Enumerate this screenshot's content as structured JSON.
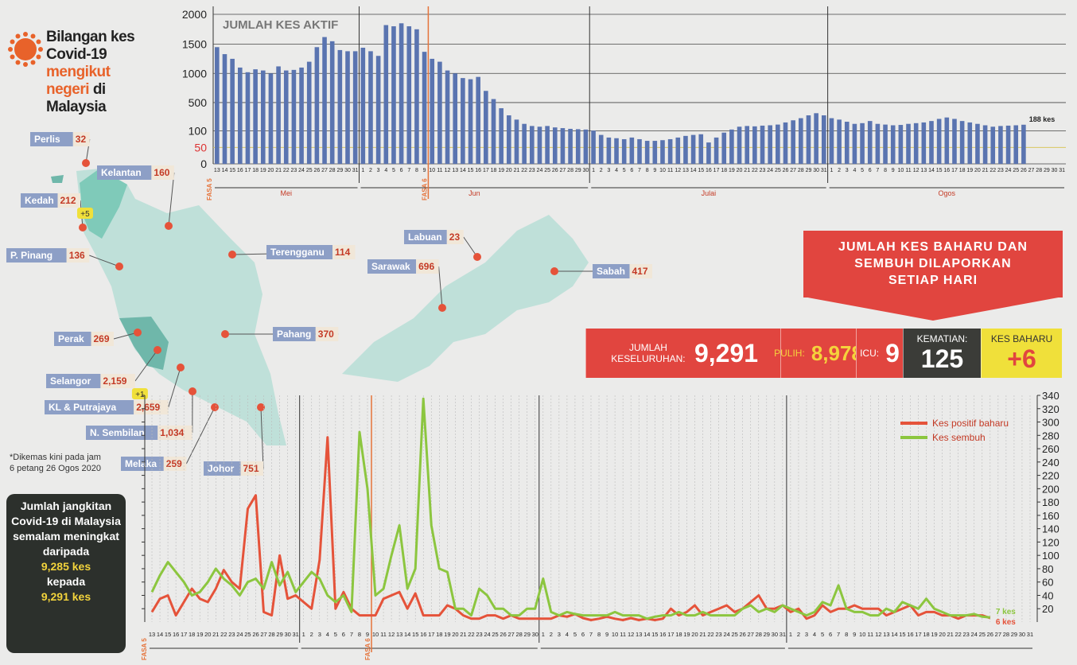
{
  "title": [
    "Bilangan kes Covid-19",
    "mengikut negeri",
    "di Malaysia"
  ],
  "note": "*Dikemas kini pada jam 6 petang 26 Ogos 2020",
  "summary_box": {
    "text": "Jumlah jangkitan Covid-19 di Malaysia semalam meningkat daripada",
    "from": "9,285 kes",
    "joiner": "kepada",
    "to": "9,291 kes"
  },
  "banner": "JUMLAH KES BAHARU DAN SEMBUH DILAPORKAN SETIAP HARI",
  "totals": {
    "total": {
      "label": "JUMLAH KESELURUHAN:",
      "value": "9,291"
    },
    "recovered": {
      "label": "PULIH:",
      "value": "8,978"
    },
    "icu": {
      "label": "ICU:",
      "value": "9"
    },
    "deaths": {
      "label": "KEMATIAN:",
      "value": "125"
    },
    "new": {
      "label": "KES BAHARU",
      "value": "+6"
    }
  },
  "map": {
    "states": [
      {
        "name": "Perlis",
        "count": "32"
      },
      {
        "name": "Kelantan",
        "count": "160"
      },
      {
        "name": "Kedah",
        "count": "212",
        "increase": "+5"
      },
      {
        "name": "P. Pinang",
        "count": "136"
      },
      {
        "name": "Terengganu",
        "count": "114"
      },
      {
        "name": "Perak",
        "count": "269"
      },
      {
        "name": "Pahang",
        "count": "370"
      },
      {
        "name": "Selangor",
        "count": "2,159",
        "increase": "+1"
      },
      {
        "name": "KL & Putrajaya",
        "count": "2,659"
      },
      {
        "name": "N. Sembilan",
        "count": "1,034"
      },
      {
        "name": "Melaka",
        "count": "259"
      },
      {
        "name": "Johor",
        "count": "751"
      },
      {
        "name": "Labuan",
        "count": "23"
      },
      {
        "name": "Sarawak",
        "count": "696"
      },
      {
        "name": "Sabah",
        "count": "417"
      }
    ]
  },
  "chart_data": [
    {
      "type": "bar",
      "title": "JUMLAH KES AKTIF",
      "categories": [
        "13",
        "14",
        "15",
        "16",
        "17",
        "18",
        "19",
        "20",
        "21",
        "22",
        "23",
        "24",
        "25",
        "26",
        "27",
        "28",
        "29",
        "30",
        "31",
        "1",
        "2",
        "3",
        "4",
        "5",
        "6",
        "7",
        "8",
        "9",
        "10",
        "11",
        "12",
        "13",
        "14",
        "15",
        "16",
        "17",
        "18",
        "19",
        "20",
        "21",
        "22",
        "23",
        "24",
        "25",
        "26",
        "27",
        "28",
        "29",
        "30",
        "1",
        "2",
        "3",
        "4",
        "5",
        "6",
        "7",
        "8",
        "9",
        "10",
        "11",
        "12",
        "13",
        "14",
        "15",
        "16",
        "17",
        "18",
        "19",
        "20",
        "21",
        "22",
        "23",
        "24",
        "25",
        "26",
        "27",
        "28",
        "29",
        "30",
        "31",
        "1",
        "2",
        "3",
        "4",
        "5",
        "6",
        "7",
        "8",
        "9",
        "10",
        "11",
        "12",
        "13",
        "14",
        "15",
        "16",
        "17",
        "18",
        "19",
        "20",
        "21",
        "22",
        "23",
        "24",
        "25",
        "26",
        "27",
        "28",
        "29",
        "30",
        "31"
      ],
      "months": [
        "Mei",
        "Jun",
        "Julai",
        "Ogos"
      ],
      "phases": [
        {
          "label": "FASA 5",
          "start": 0
        },
        {
          "label": "FASA 6",
          "start": 28
        }
      ],
      "values": [
        1450,
        1330,
        1250,
        1100,
        1020,
        1070,
        1050,
        1000,
        1120,
        1050,
        1060,
        1100,
        1200,
        1450,
        1620,
        1550,
        1400,
        1380,
        1380,
        1440,
        1380,
        1300,
        1820,
        1800,
        1850,
        1800,
        1750,
        1370,
        1250,
        1200,
        1050,
        1000,
        920,
        900,
        940,
        700,
        560,
        420,
        320,
        260,
        200,
        170,
        160,
        170,
        150,
        140,
        130,
        125,
        120,
        105,
        88,
        80,
        78,
        75,
        80,
        75,
        70,
        70,
        72,
        75,
        80,
        85,
        88,
        90,
        65,
        80,
        95,
        120,
        160,
        170,
        165,
        175,
        180,
        190,
        220,
        250,
        280,
        320,
        350,
        320,
        280,
        260,
        230,
        200,
        210,
        240,
        200,
        190,
        180,
        185,
        200,
        210,
        220,
        240,
        270,
        290,
        270,
        240,
        220,
        200,
        180,
        160,
        170,
        175,
        180,
        188,
        null,
        null,
        null,
        null,
        null
      ],
      "color": "#5a74b0",
      "ylim": [
        0,
        2000
      ],
      "yticks": [
        0,
        50,
        100,
        500,
        1000,
        1500,
        2000
      ],
      "grid": true,
      "end_label": "188 kes"
    },
    {
      "type": "line",
      "categories": [
        "13",
        "14",
        "15",
        "16",
        "17",
        "18",
        "19",
        "20",
        "21",
        "22",
        "23",
        "24",
        "25",
        "26",
        "27",
        "28",
        "29",
        "30",
        "31",
        "1",
        "2",
        "3",
        "4",
        "5",
        "6",
        "7",
        "8",
        "9",
        "10",
        "11",
        "12",
        "13",
        "14",
        "15",
        "16",
        "17",
        "18",
        "19",
        "20",
        "21",
        "22",
        "23",
        "24",
        "25",
        "26",
        "27",
        "28",
        "29",
        "30",
        "1",
        "2",
        "3",
        "4",
        "5",
        "6",
        "7",
        "8",
        "9",
        "10",
        "11",
        "12",
        "13",
        "14",
        "15",
        "16",
        "17",
        "18",
        "19",
        "20",
        "21",
        "22",
        "23",
        "24",
        "25",
        "26",
        "27",
        "28",
        "29",
        "30",
        "31",
        "1",
        "2",
        "3",
        "4",
        "5",
        "6",
        "7",
        "8",
        "9",
        "10",
        "11",
        "12",
        "13",
        "14",
        "15",
        "16",
        "17",
        "18",
        "19",
        "20",
        "21",
        "22",
        "23",
        "24",
        "25",
        "26",
        "27",
        "28",
        "29",
        "30",
        "31"
      ],
      "phases": [
        {
          "label": "FASA 5",
          "start": 0
        },
        {
          "label": "FASA 6",
          "start": 28
        }
      ],
      "series": [
        {
          "name": "Kes positif baharu",
          "color": "#e5533a",
          "end_label": "6 kes",
          "values": [
            15,
            35,
            40,
            10,
            30,
            50,
            35,
            30,
            50,
            78,
            60,
            50,
            170,
            190,
            15,
            10,
            100,
            35,
            40,
            30,
            20,
            93,
            277,
            20,
            45,
            20,
            10,
            10,
            10,
            35,
            40,
            45,
            20,
            43,
            10,
            10,
            10,
            25,
            20,
            10,
            5,
            5,
            10,
            10,
            5,
            10,
            5,
            5,
            5,
            5,
            5,
            10,
            8,
            12,
            6,
            3,
            5,
            8,
            5,
            3,
            6,
            3,
            5,
            3,
            5,
            20,
            10,
            15,
            25,
            10,
            15,
            20,
            25,
            15,
            20,
            30,
            40,
            20,
            20,
            25,
            15,
            20,
            5,
            10,
            25,
            15,
            20,
            20,
            25,
            20,
            20,
            20,
            10,
            15,
            20,
            25,
            10,
            15,
            15,
            10,
            10,
            5,
            10,
            10,
            10,
            6,
            null,
            null,
            null,
            null,
            null
          ]
        },
        {
          "name": "Kes sembuh",
          "color": "#8cc63f",
          "end_label": "7 kes",
          "values": [
            45,
            70,
            90,
            75,
            60,
            40,
            45,
            60,
            80,
            65,
            55,
            40,
            60,
            65,
            50,
            90,
            55,
            75,
            45,
            60,
            75,
            65,
            40,
            30,
            40,
            15,
            285,
            200,
            40,
            50,
            100,
            145,
            50,
            80,
            335,
            145,
            80,
            75,
            20,
            20,
            10,
            50,
            40,
            20,
            20,
            10,
            10,
            20,
            20,
            65,
            15,
            10,
            15,
            12,
            10,
            10,
            10,
            10,
            15,
            10,
            10,
            10,
            5,
            8,
            10,
            10,
            15,
            10,
            10,
            15,
            10,
            10,
            10,
            10,
            20,
            25,
            15,
            20,
            15,
            25,
            20,
            15,
            10,
            15,
            30,
            25,
            55,
            20,
            15,
            15,
            10,
            10,
            20,
            15,
            30,
            25,
            20,
            35,
            20,
            15,
            10,
            10,
            10,
            12,
            8,
            7,
            null,
            null,
            null,
            null,
            null
          ]
        }
      ],
      "ylim": [
        0,
        340
      ],
      "yticks": [
        20,
        40,
        60,
        80,
        100,
        120,
        140,
        160,
        180,
        200,
        220,
        240,
        260,
        280,
        300,
        320,
        340
      ],
      "grid": true,
      "legend": "top-right"
    }
  ]
}
